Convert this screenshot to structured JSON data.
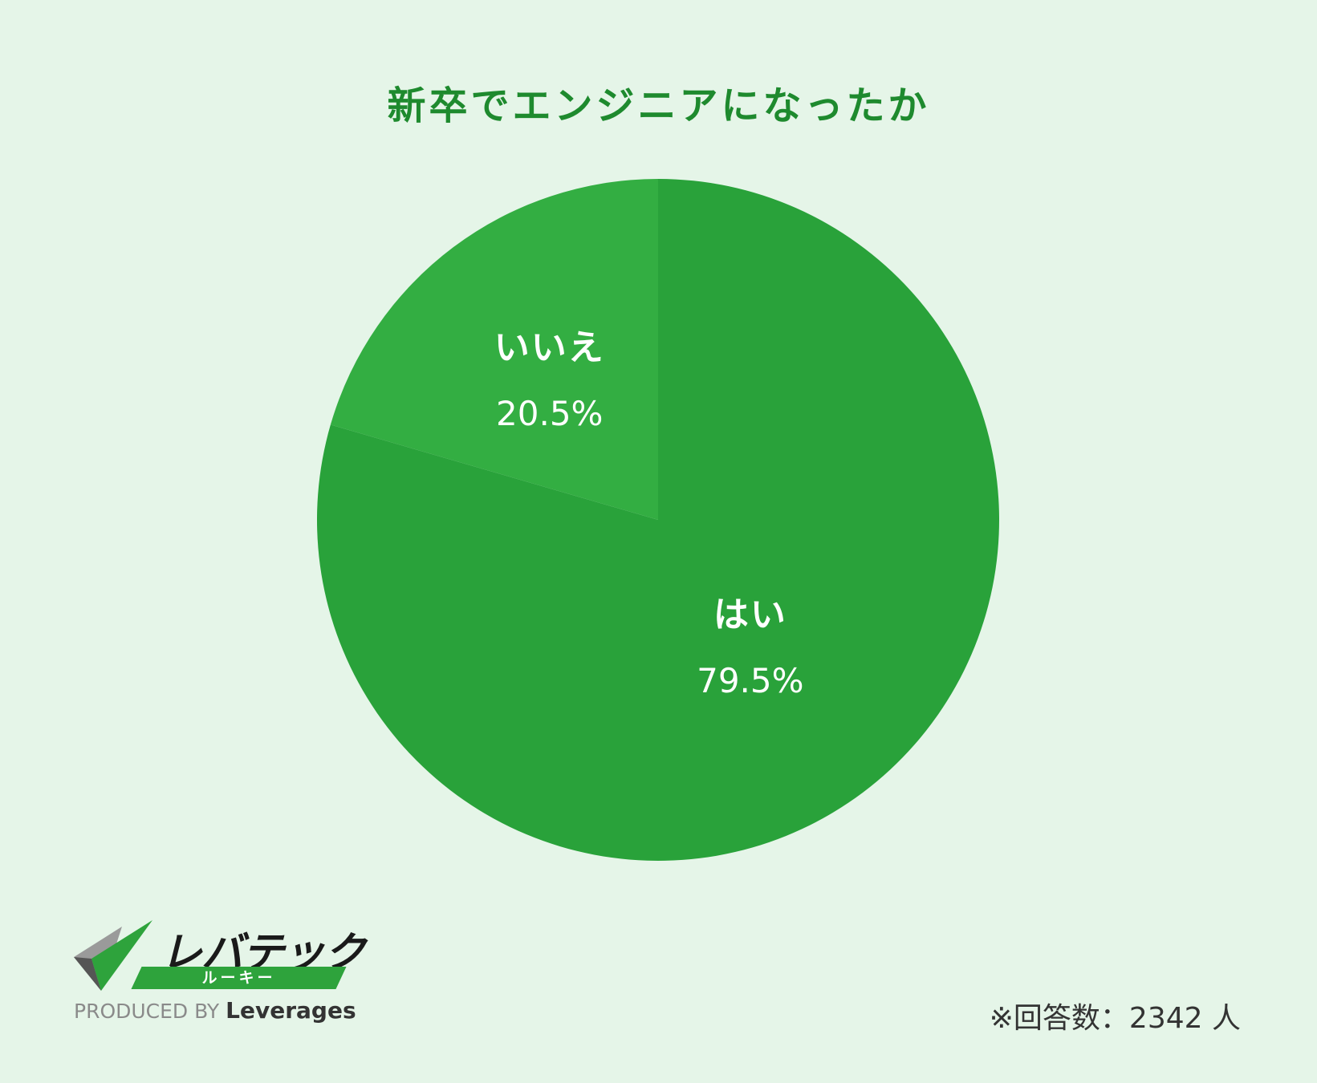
{
  "title": "新卒でエンジニアになったか",
  "chart_data": {
    "type": "pie",
    "title": "新卒でエンジニアになったか",
    "slices": [
      {
        "label": "いいえ",
        "value": 20.5,
        "display": "20.5%",
        "color": "#33ae42"
      },
      {
        "label": "はい",
        "value": 79.5,
        "display": "79.5%",
        "color": "#29a23a"
      }
    ],
    "start_angle": "12 o'clock",
    "direction": "counterclockwise"
  },
  "footer": {
    "logo_text": "レバテック",
    "logo_sub": "ルーキー",
    "produced_by": "PRODUCED BY",
    "brand": "Leverages",
    "note": "※回答数：2342 人"
  },
  "icons": {
    "logo_mark": "checkmark-icon"
  }
}
